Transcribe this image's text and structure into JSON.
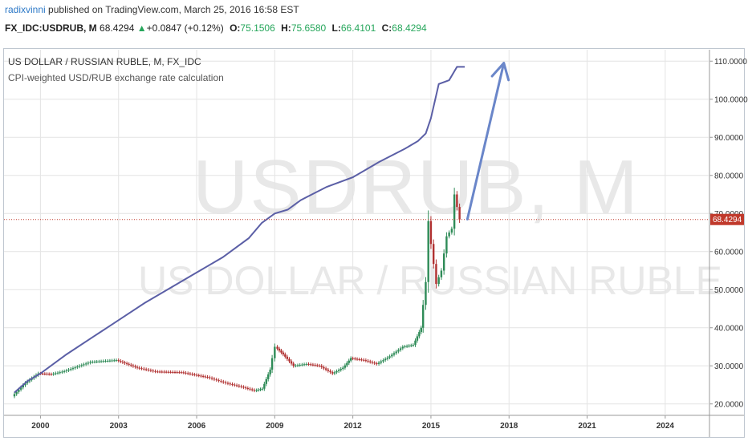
{
  "header": {
    "author": "radixvinni",
    "published_text": "published on TradingView.com, March 25, 2016 16:58 EST"
  },
  "ticker_line": {
    "symbol": "FX_IDC:USDRUB, M",
    "last": "68.4294",
    "change": "+0.0847 (+0.12%)",
    "open_label": "O:",
    "open": "75.1506",
    "high_label": "H:",
    "high": "75.6580",
    "low_label": "L:",
    "low": "66.4101",
    "close_label": "C:",
    "close": "68.4294",
    "arrow": "▲"
  },
  "watermark": {
    "symbol": "USDRUB, M",
    "name": "US DOLLAR / RUSSIAN RUBLE"
  },
  "colors": {
    "cpi_line": "#5b5fa6",
    "arrow": "#6a86c9",
    "candle_up": "#2e8b57",
    "candle_down": "#b03030",
    "last_price": "#c0392b",
    "grid": "#e4e4e4"
  },
  "chart_data": {
    "type": "line",
    "title": "US DOLLAR / RUSSIAN RUBLE, M, FX_IDC",
    "subtitle": "CPI-weighted USD/RUB exchange rate calculation",
    "y_axis_position": "right",
    "ylim": [
      17,
      113
    ],
    "xlim": [
      1998.6,
      2025.7
    ],
    "yticks": [
      "20.0000",
      "30.0000",
      "40.0000",
      "50.0000",
      "60.0000",
      "70.0000",
      "80.0000",
      "90.0000",
      "100.0000",
      "110.0000"
    ],
    "xticks": [
      "2000",
      "2003",
      "2006",
      "2009",
      "2012",
      "2015",
      "2018",
      "2021",
      "2024"
    ],
    "last_price": "68.4294",
    "grid": true,
    "series": [
      {
        "name": "",
        "style": "candles",
        "x": [
          1999.0,
          1999.5,
          2000.0,
          2000.5,
          2001.0,
          2002.0,
          2003.0,
          2003.8,
          2004.5,
          2005.5,
          2006.5,
          2007.2,
          2007.8,
          2008.3,
          2008.6,
          2008.9,
          2009.1,
          2009.4,
          2009.8,
          2010.3,
          2010.8,
          2011.3,
          2011.7,
          2012.0,
          2012.5,
          2013.0,
          2013.5,
          2014.0,
          2014.4,
          2014.7,
          2014.9,
          2015.0,
          2015.1,
          2015.3,
          2015.5,
          2015.7,
          2015.9,
          2016.0,
          2016.2
        ],
        "values": [
          22.0,
          25.5,
          28.0,
          27.8,
          28.6,
          31.0,
          31.5,
          29.5,
          28.5,
          28.3,
          27.0,
          25.5,
          24.5,
          23.5,
          24.0,
          29.0,
          35.0,
          33.0,
          30.0,
          30.5,
          30.0,
          28.0,
          29.5,
          32.0,
          31.5,
          30.5,
          32.5,
          35.0,
          35.5,
          40.0,
          52.0,
          68.0,
          62.0,
          51.5,
          55.0,
          64.0,
          66.0,
          75.0,
          68.4294
        ]
      },
      {
        "name": "",
        "style": "line",
        "x": [
          1999.0,
          1999.5,
          2000.0,
          2001.0,
          2002.0,
          2003.0,
          2004.0,
          2005.0,
          2006.0,
          2007.0,
          2008.0,
          2008.5,
          2009.0,
          2009.5,
          2010.0,
          2011.0,
          2012.0,
          2012.5,
          2013.0,
          2014.0,
          2014.5,
          2014.8,
          2015.0,
          2015.3,
          2015.7,
          2016.0,
          2016.3
        ],
        "values": [
          23.0,
          26.0,
          28.0,
          33.0,
          37.5,
          42.0,
          46.5,
          50.5,
          54.5,
          58.5,
          63.5,
          67.5,
          70.0,
          71.0,
          73.5,
          77.0,
          79.5,
          81.5,
          83.5,
          87.0,
          89.0,
          91.0,
          95.0,
          104.0,
          105.0,
          108.5,
          108.5
        ]
      }
    ],
    "annotations": [
      {
        "type": "arrow",
        "from": [
          2016.4,
          68.5
        ],
        "to": [
          2017.8,
          109.5
        ]
      }
    ]
  }
}
